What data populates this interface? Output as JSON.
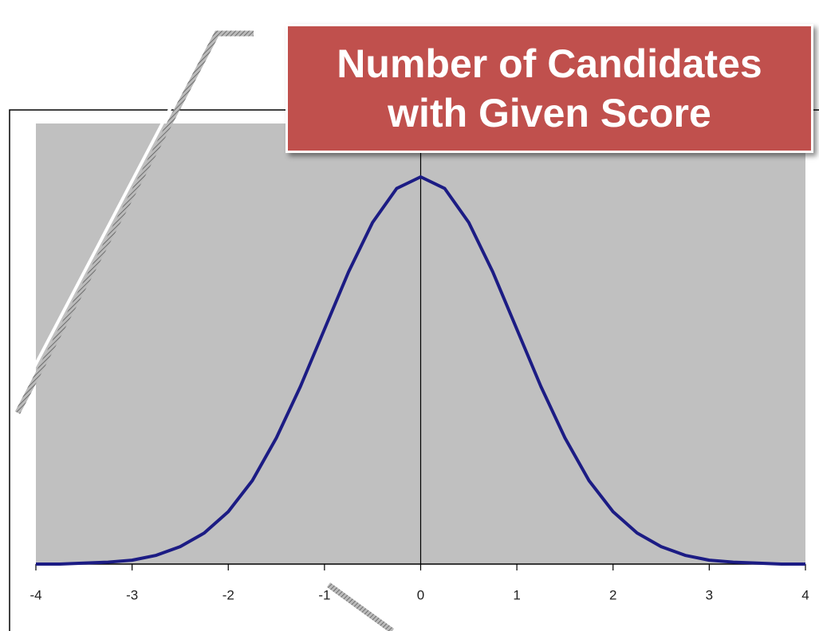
{
  "chart_data": {
    "type": "line",
    "title": "Number of Candidates with Given Score",
    "x": [
      -4,
      -3.75,
      -3.5,
      -3.25,
      -3,
      -2.75,
      -2.5,
      -2.25,
      -2,
      -1.75,
      -1.5,
      -1.25,
      -1,
      -0.75,
      -0.5,
      -0.25,
      0,
      0.25,
      0.5,
      0.75,
      1,
      1.25,
      1.5,
      1.75,
      2,
      2.25,
      2.5,
      2.75,
      3,
      3.25,
      3.5,
      3.75,
      4
    ],
    "series": [
      {
        "color": "#1c1c84",
        "values": [
          0,
          0,
          0.001,
          0.002,
          0.004,
          0.009,
          0.018,
          0.032,
          0.054,
          0.086,
          0.13,
          0.183,
          0.242,
          0.301,
          0.352,
          0.387,
          0.399,
          0.387,
          0.352,
          0.301,
          0.242,
          0.183,
          0.13,
          0.086,
          0.054,
          0.032,
          0.018,
          0.009,
          0.004,
          0.002,
          0.001,
          0,
          0
        ]
      }
    ],
    "xlim": [
      -4,
      4
    ],
    "xticks": [
      -4,
      -3,
      -2,
      -1,
      0,
      1,
      2,
      3,
      4
    ],
    "ylim": [
      0,
      0.454
    ],
    "plot_background": "#c0c0c0"
  }
}
